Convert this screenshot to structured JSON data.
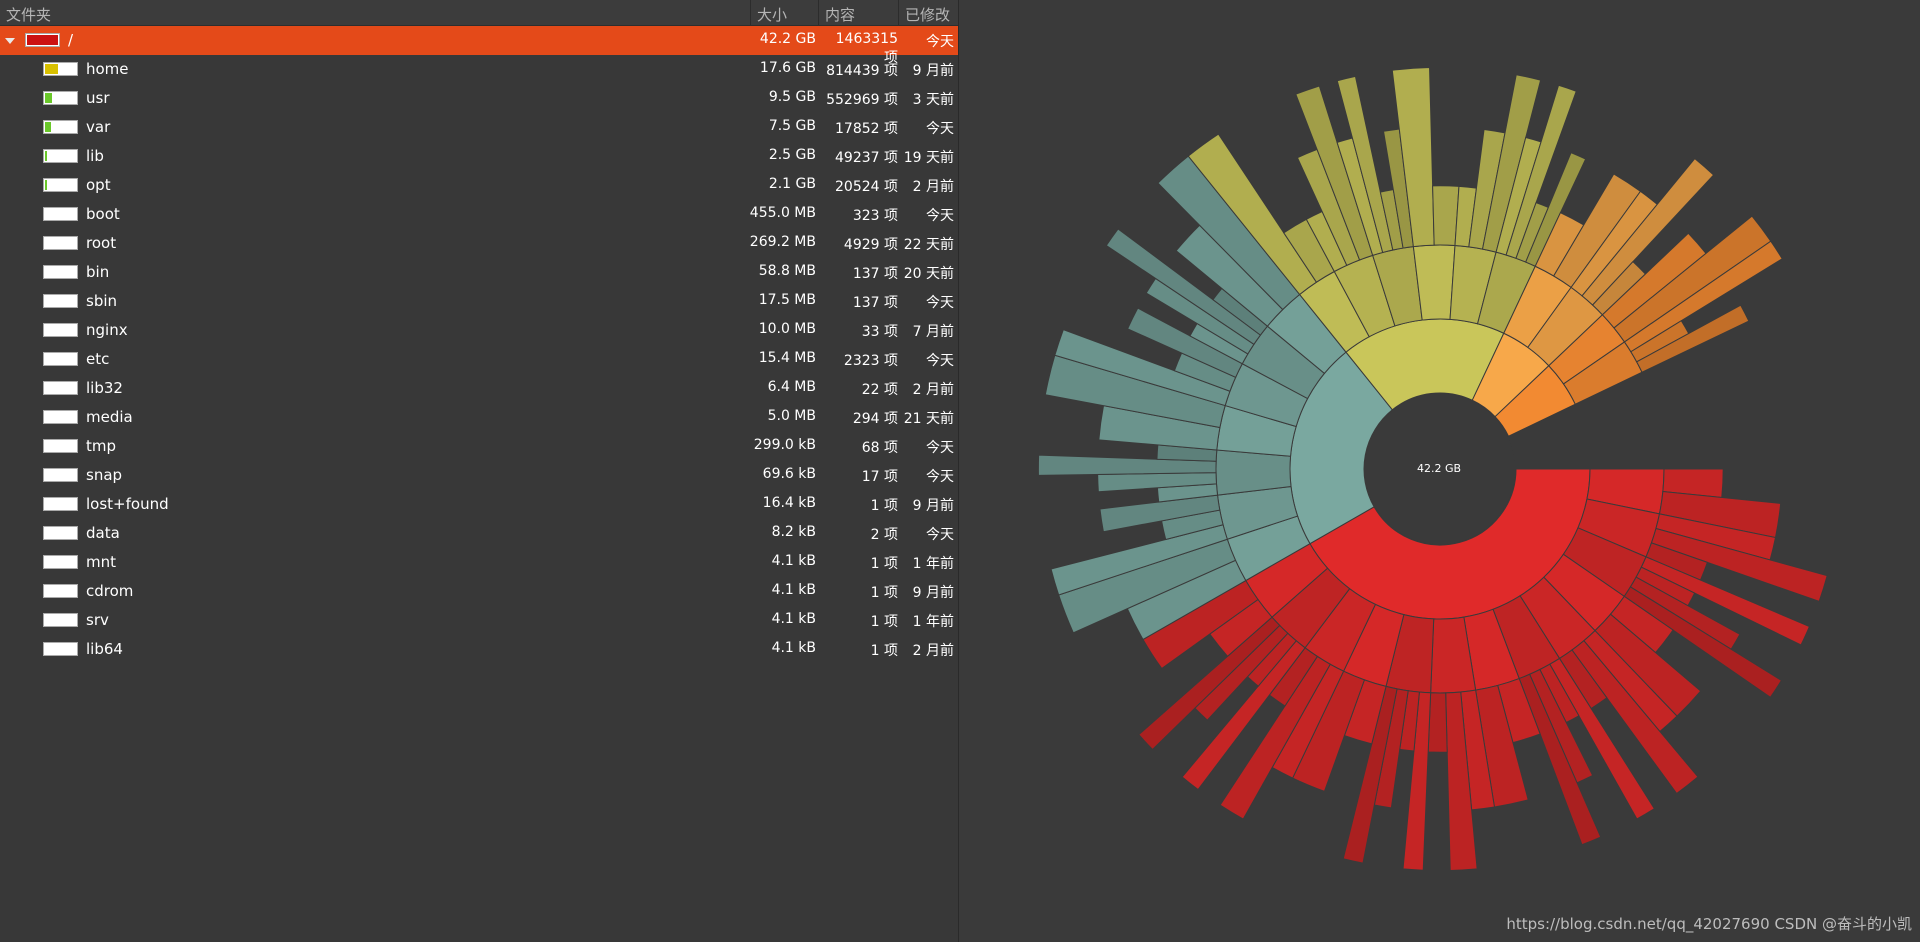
{
  "header": {
    "folder": "文件夹",
    "size": "大小",
    "contents": "内容",
    "modified": "已修改"
  },
  "rows": [
    {
      "name": "/",
      "size": "42.2 GB",
      "items": "1463315 项",
      "modified": "今天",
      "expandable": true,
      "expanded": true,
      "usage": 1.0,
      "color": "#cc1111"
    },
    {
      "name": "home",
      "size": "17.6 GB",
      "items": "814439 项",
      "modified": "9 月前",
      "expandable": true,
      "usage": 0.42,
      "color": "#d8c000"
    },
    {
      "name": "usr",
      "size": "9.5 GB",
      "items": "552969 项",
      "modified": "3 天前",
      "expandable": true,
      "usage": 0.22,
      "color": "#6ac82a"
    },
    {
      "name": "var",
      "size": "7.5 GB",
      "items": "17852 项",
      "modified": "今天",
      "expandable": true,
      "usage": 0.18,
      "color": "#6ac82a"
    },
    {
      "name": "lib",
      "size": "2.5 GB",
      "items": "49237 项",
      "modified": "19 天前",
      "expandable": true,
      "usage": 0.06,
      "color": "#6ac82a"
    },
    {
      "name": "opt",
      "size": "2.1 GB",
      "items": "20524 项",
      "modified": "2 月前",
      "expandable": true,
      "usage": 0.05,
      "color": "#6ac82a"
    },
    {
      "name": "boot",
      "size": "455.0 MB",
      "items": "323 项",
      "modified": "今天",
      "expandable": true,
      "usage": 0.0,
      "color": "#6ac82a"
    },
    {
      "name": "root",
      "size": "269.2 MB",
      "items": "4929 项",
      "modified": "22 天前",
      "expandable": true,
      "usage": 0.0,
      "color": "#6ac82a"
    },
    {
      "name": "bin",
      "size": "58.8 MB",
      "items": "137 项",
      "modified": "20 天前",
      "expandable": false,
      "usage": 0.0,
      "color": "#6ac82a"
    },
    {
      "name": "sbin",
      "size": "17.5 MB",
      "items": "137 项",
      "modified": "今天",
      "expandable": false,
      "usage": 0.0,
      "color": "#6ac82a"
    },
    {
      "name": "nginx",
      "size": "10.0 MB",
      "items": "33 项",
      "modified": "7 月前",
      "expandable": true,
      "usage": 0.0,
      "color": "#6ac82a"
    },
    {
      "name": "etc",
      "size": "15.4 MB",
      "items": "2323 项",
      "modified": "今天",
      "expandable": true,
      "usage": 0.0,
      "color": "#6ac82a"
    },
    {
      "name": "lib32",
      "size": "6.4 MB",
      "items": "22 项",
      "modified": "2 月前",
      "expandable": false,
      "usage": 0.0,
      "color": "#6ac82a"
    },
    {
      "name": "media",
      "size": "5.0 MB",
      "items": "294 项",
      "modified": "21 天前",
      "expandable": true,
      "usage": 0.0,
      "color": "#6ac82a"
    },
    {
      "name": "tmp",
      "size": "299.0 kB",
      "items": "68 项",
      "modified": "今天",
      "expandable": true,
      "usage": 0.0,
      "color": "#6ac82a"
    },
    {
      "name": "snap",
      "size": "69.6 kB",
      "items": "17 项",
      "modified": "今天",
      "expandable": true,
      "usage": 0.0,
      "color": "#6ac82a"
    },
    {
      "name": "lost+found",
      "size": "16.4 kB",
      "items": "1 项",
      "modified": "9 月前",
      "expandable": false,
      "usage": 0.0,
      "color": "#6ac82a"
    },
    {
      "name": "data",
      "size": "8.2 kB",
      "items": "2 项",
      "modified": "今天",
      "expandable": true,
      "usage": 0.0,
      "color": "#6ac82a"
    },
    {
      "name": "mnt",
      "size": "4.1 kB",
      "items": "1 项",
      "modified": "1 年前",
      "expandable": false,
      "usage": 0.0,
      "color": "#6ac82a"
    },
    {
      "name": "cdrom",
      "size": "4.1 kB",
      "items": "1 项",
      "modified": "9 月前",
      "expandable": false,
      "usage": 0.0,
      "color": "#6ac82a"
    },
    {
      "name": "srv",
      "size": "4.1 kB",
      "items": "1 项",
      "modified": "1 年前",
      "expandable": false,
      "usage": 0.0,
      "color": "#6ac82a"
    },
    {
      "name": "lib64",
      "size": "4.1 kB",
      "items": "1 项",
      "modified": "2 月前",
      "expandable": false,
      "usage": 0.0,
      "color": "#6ac82a"
    }
  ],
  "chart": {
    "total_label": "42.2 GB",
    "watermark": "https://blog.csdn.net/qq_42027690 CSDN @奋斗的小凯"
  },
  "chart_data": {
    "type": "sunburst",
    "total_gb": 42.2,
    "segments": [
      {
        "name": "home",
        "gb": 17.6,
        "color": "#e02a2a"
      },
      {
        "name": "usr",
        "gb": 9.5,
        "color": "#7aa8a0"
      },
      {
        "name": "var",
        "gb": 7.5,
        "color": "#c9c65a"
      },
      {
        "name": "lib",
        "gb": 2.5,
        "color": "#f7a84a"
      },
      {
        "name": "opt",
        "gb": 2.1,
        "color": "#f28a32"
      }
    ]
  }
}
